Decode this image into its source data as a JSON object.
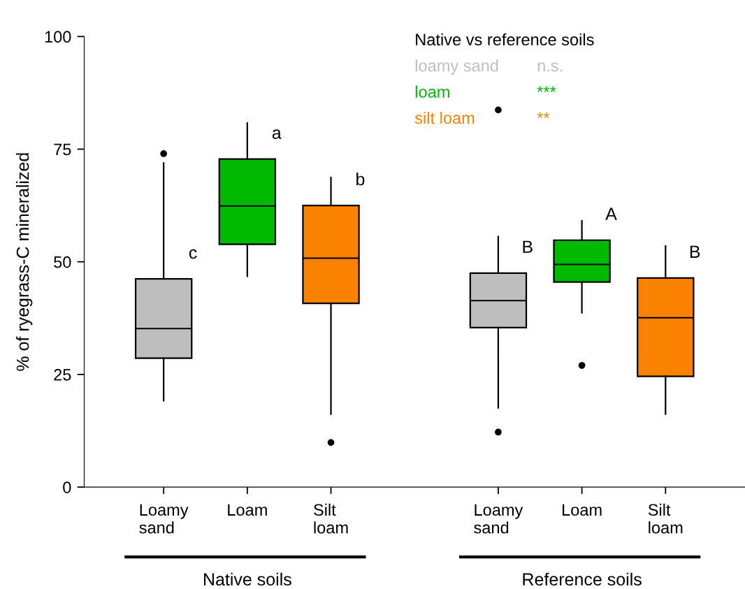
{
  "chart_data": {
    "type": "box",
    "ylabel": "% of ryegrass-C mineralized",
    "ylim": [
      0,
      100
    ],
    "yticks": [
      0,
      25,
      50,
      75,
      100
    ],
    "grid": false,
    "categories": [
      "Loamy\nsand",
      "Loam",
      "Silt\nloam",
      null,
      "Loamy\nsand",
      "Loam",
      "Silt\nloam"
    ],
    "colors": [
      "#bebebe",
      "#00b900",
      "#f98200",
      null,
      "#bebebe",
      "#00b900",
      "#f98200"
    ],
    "value_labels": [
      "c",
      "a",
      "b",
      null,
      "B",
      "A",
      "B"
    ],
    "annotations": [
      "Native vs reference soils",
      "loamy sand",
      "n.s.",
      "loam",
      "***",
      "silt loam",
      "**",
      "Native soils",
      "Reference soils"
    ],
    "boxes": [
      {
        "low": 19.2,
        "q1": 28.6,
        "median": 35.2,
        "q3": 46.2,
        "high": 71.9,
        "outliers": [
          74.0
        ]
      },
      {
        "low": 46.8,
        "q1": 53.9,
        "median": 62.4,
        "q3": 72.8,
        "high": 80.8
      },
      {
        "low": 16.2,
        "q1": 40.8,
        "median": 50.8,
        "q3": 62.5,
        "high": 68.7,
        "outliers": [
          9.9
        ]
      },
      null,
      {
        "low": 17.6,
        "q1": 35.4,
        "median": 41.4,
        "q3": 47.5,
        "high": 55.6,
        "outliers": [
          12.2,
          83.7
        ]
      },
      {
        "low": 38.7,
        "q1": 45.5,
        "median": 49.4,
        "q3": 54.8,
        "high": 59.1,
        "outliers": [
          27.0
        ]
      },
      {
        "low": 16.2,
        "q1": 24.6,
        "median": 37.6,
        "q3": 46.4,
        "high": 53.5
      }
    ]
  }
}
